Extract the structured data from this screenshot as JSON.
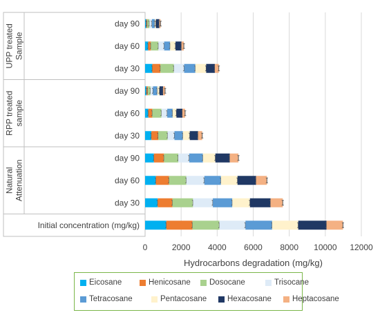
{
  "chart_data": {
    "type": "bar",
    "orientation": "horizontal",
    "stacked": true,
    "error_bars": true,
    "xlabel": "Hydrocarbons degradation (mg/kg)",
    "xlim": [
      0,
      12000
    ],
    "xticks": [
      "0",
      "2000",
      "4000",
      "6000",
      "8000",
      "10000",
      "12000"
    ],
    "grid": "vertical",
    "legend_position": "bottom",
    "groups": [
      {
        "label": "UPP treated Sample",
        "categories": [
          "day 90",
          "day 60",
          "day 30"
        ]
      },
      {
        "label": "RPP treated sample",
        "categories": [
          "day 90",
          "day 60",
          "day 30"
        ]
      },
      {
        "label": "Natural Attenuation",
        "categories": [
          "day 90",
          "day 60",
          "day 30"
        ]
      },
      {
        "label": "",
        "categories": [
          "Initial concentration (mg/kg)"
        ]
      }
    ],
    "categories": [
      "day 90",
      "day 60",
      "day 30",
      "day 90",
      "day 60",
      "day 30",
      "day 90",
      "day 60",
      "day 30",
      "Initial concentration (mg/kg)"
    ],
    "series": [
      {
        "name": "Eicosane",
        "color": "#00b0f0",
        "values": [
          70,
          170,
          400,
          80,
          180,
          350,
          490,
          600,
          700,
          1180
        ]
      },
      {
        "name": "Henicosane",
        "color": "#ed7d31",
        "values": [
          50,
          150,
          450,
          70,
          220,
          380,
          560,
          730,
          820,
          1450
        ]
      },
      {
        "name": "Dosocane",
        "color": "#a9d18e",
        "values": [
          120,
          420,
          750,
          150,
          510,
          520,
          790,
          960,
          1140,
          1490
        ]
      },
      {
        "name": "Trisocane",
        "color": "#deebf7",
        "values": [
          140,
          320,
          570,
          140,
          320,
          380,
          610,
          1000,
          1100,
          1450
        ]
      },
      {
        "name": "Tetracosane",
        "color": "#5b9bd5",
        "values": [
          160,
          330,
          620,
          240,
          300,
          470,
          760,
          920,
          1080,
          1480
        ]
      },
      {
        "name": "Pentacosane",
        "color": "#fff2cc",
        "values": [
          60,
          300,
          600,
          120,
          210,
          380,
          690,
          920,
          980,
          1450
        ]
      },
      {
        "name": "Hexacosane",
        "color": "#203864",
        "values": [
          190,
          330,
          480,
          200,
          330,
          460,
          800,
          1030,
          1140,
          1570
        ]
      },
      {
        "name": "Heptacosane",
        "color": "#f4b183",
        "values": [
          70,
          130,
          220,
          110,
          150,
          230,
          480,
          600,
          680,
          910
        ]
      }
    ]
  }
}
